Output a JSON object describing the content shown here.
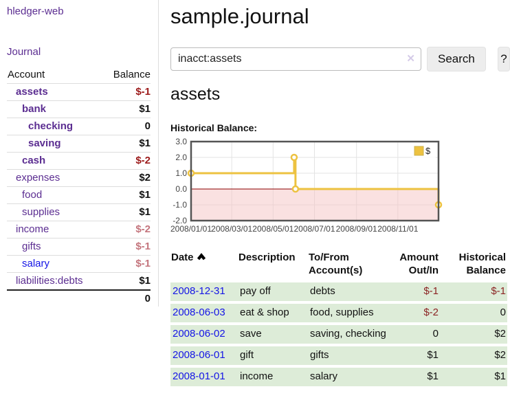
{
  "app": {
    "brand": "hledger-web"
  },
  "sidebar": {
    "nav_journal": "Journal",
    "header": {
      "account": "Account",
      "balance": "Balance"
    },
    "accounts": [
      {
        "name": "assets",
        "level": 0,
        "bold": true,
        "link": "purple",
        "balance": "$-1",
        "balance_class": "neg-strong"
      },
      {
        "name": "bank",
        "level": 1,
        "bold": true,
        "link": "purple",
        "balance": "$1",
        "balance_class": ""
      },
      {
        "name": "checking",
        "level": 2,
        "bold": true,
        "link": "purple",
        "balance": "0",
        "balance_class": ""
      },
      {
        "name": "saving",
        "level": 2,
        "bold": true,
        "link": "purple",
        "balance": "$1",
        "balance_class": ""
      },
      {
        "name": "cash",
        "level": 1,
        "bold": true,
        "link": "purple",
        "balance": "$-2",
        "balance_class": "neg-strong"
      },
      {
        "name": "expenses",
        "level": 0,
        "bold": false,
        "link": "purple",
        "balance": "$2",
        "balance_class": ""
      },
      {
        "name": "food",
        "level": 1,
        "bold": false,
        "link": "purple",
        "balance": "$1",
        "balance_class": ""
      },
      {
        "name": "supplies",
        "level": 1,
        "bold": false,
        "link": "purple",
        "balance": "$1",
        "balance_class": ""
      },
      {
        "name": "income",
        "level": 0,
        "bold": false,
        "link": "purple",
        "balance": "$-2",
        "balance_class": "neg-soft"
      },
      {
        "name": "gifts",
        "level": 1,
        "bold": false,
        "link": "purple",
        "balance": "$-1",
        "balance_class": "neg-soft"
      },
      {
        "name": "salary",
        "level": 1,
        "bold": false,
        "link": "blue",
        "balance": "$-1",
        "balance_class": "neg-soft"
      },
      {
        "name": "liabilities:debts",
        "level": 0,
        "bold": false,
        "link": "purple",
        "balance": "$1",
        "balance_class": ""
      }
    ],
    "total": "0"
  },
  "main": {
    "title": "sample.journal",
    "search": {
      "value": "inacct:assets",
      "clear_icon": "✕",
      "search_button": "Search",
      "help_button": "?"
    },
    "account_heading": "assets",
    "section_label": "Historical Balance:"
  },
  "chart_data": {
    "type": "line",
    "step": true,
    "title": "Historical Balance:",
    "series": [
      {
        "name": "$",
        "color": "#edc240",
        "points": [
          [
            "2008-01-01",
            1
          ],
          [
            "2008-06-01",
            2
          ],
          [
            "2008-06-03",
            0
          ],
          [
            "2008-12-31",
            -1
          ]
        ]
      }
    ],
    "x_ticks": [
      "2008/01/01",
      "2008/03/01",
      "2008/05/01",
      "2008/07/01",
      "2008/09/01",
      "2008/11/01"
    ],
    "y_ticks": [
      "3.0",
      "2.0",
      "1.0",
      "0.0",
      "-1.0",
      "-2.0"
    ],
    "ylim": [
      -2,
      3
    ],
    "grid": true,
    "legend": {
      "label": "$",
      "position": "top-right"
    },
    "zero_line_color": "#8b0000",
    "negative_fill": "rgba(246,195,195,0.5)",
    "grid_color": "#e3e3e3",
    "border_color": "#545454",
    "label_color": "#444"
  },
  "register": {
    "headers": {
      "date": "Date",
      "description": "Description",
      "account": "To/From Account(s)",
      "amount": "Amount Out/In",
      "balance": "Historical Balance"
    },
    "rows": [
      {
        "date": "2008-12-31",
        "description": "pay off",
        "accounts": "debts",
        "amount": "$-1",
        "amount_negative": true,
        "balance": "$-1",
        "balance_negative": true
      },
      {
        "date": "2008-06-03",
        "description": "eat & shop",
        "accounts": "food, supplies",
        "amount": "$-2",
        "amount_negative": true,
        "balance": "0",
        "balance_negative": false
      },
      {
        "date": "2008-06-02",
        "description": "save",
        "accounts": "saving, checking",
        "amount": "0",
        "amount_negative": false,
        "balance": "$2",
        "balance_negative": false
      },
      {
        "date": "2008-06-01",
        "description": "gift",
        "accounts": "gifts",
        "amount": "$1",
        "amount_negative": false,
        "balance": "$2",
        "balance_negative": false
      },
      {
        "date": "2008-01-01",
        "description": "income",
        "accounts": "salary",
        "amount": "$1",
        "amount_negative": false,
        "balance": "$1",
        "balance_negative": false
      }
    ]
  }
}
